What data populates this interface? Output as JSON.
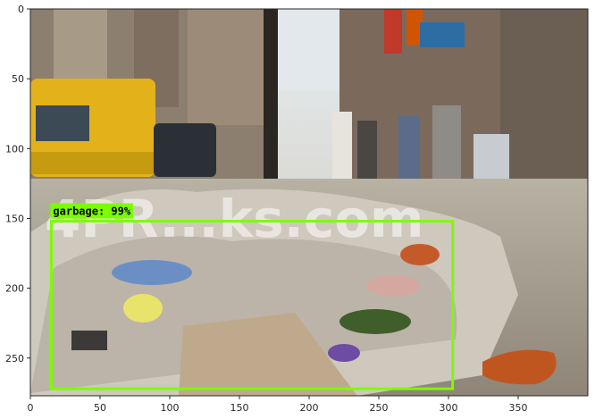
{
  "image": {
    "description_for_render": "street photo with garbage pile, overlaid with one detection box",
    "watermark_text": "4PR...ks.com"
  },
  "axes": {
    "x_ticks": [
      "0",
      "50",
      "100",
      "150",
      "200",
      "250",
      "300",
      "350"
    ],
    "y_ticks": [
      "0",
      "50",
      "100",
      "150",
      "200",
      "250"
    ],
    "x_range": [
      0,
      400
    ],
    "y_range": [
      0,
      277
    ]
  },
  "detection": {
    "label": "garbage: 99%",
    "box": {
      "x_min": 15,
      "y_min": 152,
      "x_max": 303,
      "y_max": 272
    },
    "box_color": "#7cfc00",
    "label_bg": "#7cfc00"
  },
  "colors": {
    "axis": "#262626"
  }
}
